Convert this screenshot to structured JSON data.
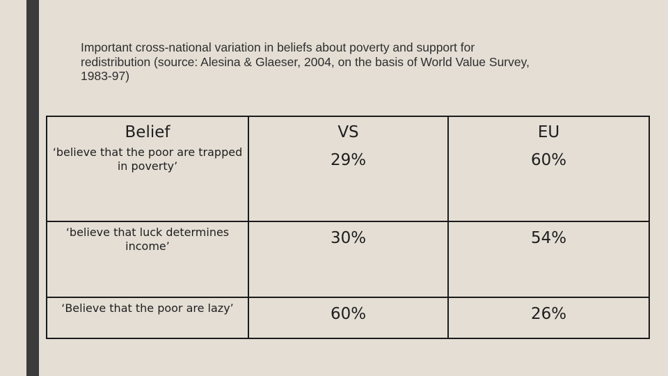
{
  "slide": {
    "title": "Important cross-national variation in beliefs about poverty and support for\nredistribution (source: Alesina & Glaeser, 2004, on the basis of World Value Survey,\n1983-97)"
  },
  "table": {
    "headers": [
      "Belief",
      "VS",
      "EU"
    ],
    "rows": [
      {
        "belief": "‘believe that the poor are trapped in poverty’",
        "vs": "29%",
        "eu": "60%"
      },
      {
        "belief": "‘believe that luck determines income’",
        "vs": "30%",
        "eu": "54%"
      },
      {
        "belief": "‘Believe that the poor are lazy’",
        "vs": "60%",
        "eu": "26%"
      }
    ]
  }
}
